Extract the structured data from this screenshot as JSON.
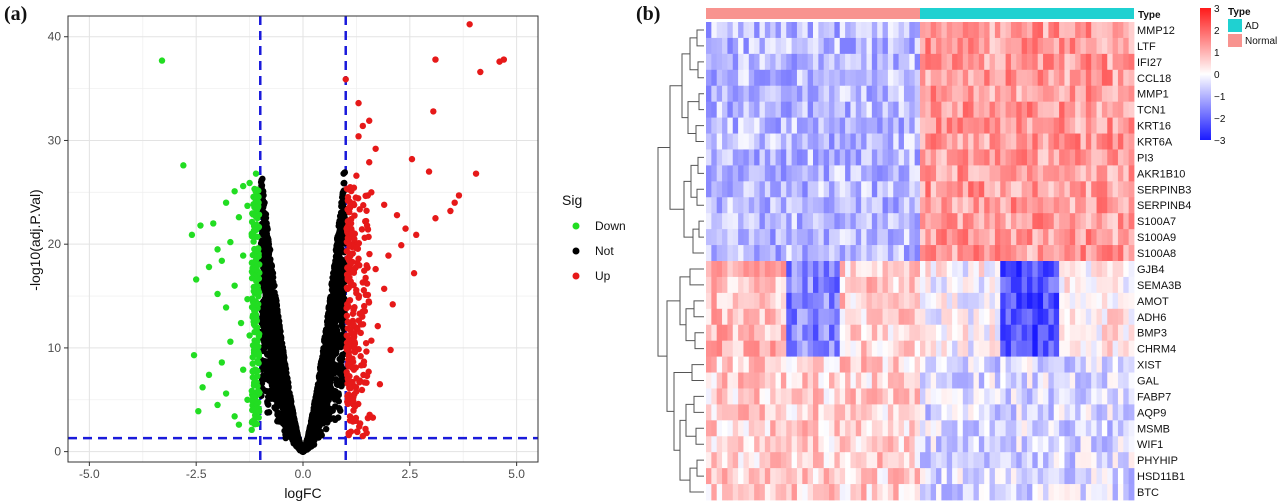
{
  "panels": {
    "a": "(a)",
    "b": "(b)"
  },
  "chart_data": [
    {
      "type": "scatter",
      "panel": "(a)",
      "title": "",
      "xlabel": "logFC",
      "ylabel": "-log10(adj.P.Val)",
      "xlim": [
        -5.5,
        5.5
      ],
      "ylim": [
        -1,
        42
      ],
      "xticks": [
        -5.0,
        -2.5,
        0.0,
        2.5,
        5.0
      ],
      "xtick_labels": [
        "-5.0",
        "-2.5",
        "0.0",
        "2.5",
        "5.0"
      ],
      "yticks": [
        0,
        10,
        20,
        30,
        40
      ],
      "ytick_labels": [
        "0",
        "10",
        "20",
        "30",
        "40"
      ],
      "grid": true,
      "thresholds": {
        "logFC": [
          -1,
          1
        ],
        "neg_log10_padj": 1.3,
        "color": "#1a1adb"
      },
      "legend": {
        "title": "Sig",
        "placement": "right",
        "entries": [
          "Down",
          "Not",
          "Up"
        ]
      },
      "series": [
        {
          "name": "Down",
          "color": "#22dd22",
          "points": [
            [
              -3.3,
              37.7
            ],
            [
              -2.8,
              27.6
            ],
            [
              -1.1,
              26.8
            ],
            [
              -1.25,
              25.9
            ],
            [
              -1.4,
              25.6
            ],
            [
              -1.6,
              25.1
            ],
            [
              -1.8,
              24.0
            ],
            [
              -2.1,
              22.0
            ],
            [
              -2.4,
              21.8
            ],
            [
              -2.6,
              20.9
            ],
            [
              -1.5,
              22.6
            ],
            [
              -1.3,
              23.7
            ],
            [
              -2.0,
              19.5
            ],
            [
              -1.7,
              20.2
            ],
            [
              -1.2,
              21.0
            ],
            [
              -2.2,
              17.8
            ],
            [
              -1.9,
              18.4
            ],
            [
              -1.4,
              18.9
            ],
            [
              -2.5,
              16.6
            ],
            [
              -1.6,
              16.0
            ],
            [
              -1.15,
              17.2
            ],
            [
              -2.0,
              15.2
            ],
            [
              -1.3,
              14.7
            ],
            [
              -1.8,
              13.9
            ],
            [
              -1.1,
              13.2
            ],
            [
              -1.45,
              12.4
            ],
            [
              -2.55,
              9.3
            ],
            [
              -1.7,
              10.6
            ],
            [
              -1.25,
              11.2
            ],
            [
              -1.9,
              8.6
            ],
            [
              -2.2,
              7.4
            ],
            [
              -1.4,
              7.9
            ],
            [
              -2.35,
              6.2
            ],
            [
              -1.8,
              5.6
            ],
            [
              -2.0,
              4.5
            ],
            [
              -2.45,
              3.9
            ],
            [
              -1.6,
              3.4
            ],
            [
              -1.3,
              5.0
            ],
            [
              -1.1,
              6.4
            ],
            [
              -1.5,
              2.6
            ],
            [
              -1.2,
              2.1
            ],
            [
              -1.05,
              9.6
            ],
            [
              -1.15,
              3.0
            ],
            [
              -1.05,
              15.6
            ],
            [
              -1.05,
              19.6
            ]
          ]
        },
        {
          "name": "Not",
          "color": "#000000",
          "points": [
            [
              -0.95,
              26.3
            ],
            [
              -0.9,
              24.0
            ],
            [
              -0.85,
              22.0
            ],
            [
              -0.8,
              20.0
            ],
            [
              -0.75,
              18.0
            ],
            [
              -0.7,
              16.0
            ],
            [
              -0.65,
              14.0
            ],
            [
              -0.6,
              12.0
            ],
            [
              -0.55,
              10.5
            ],
            [
              -0.5,
              9.0
            ],
            [
              -0.45,
              7.6
            ],
            [
              -0.4,
              6.3
            ],
            [
              -0.35,
              5.1
            ],
            [
              -0.3,
              4.0
            ],
            [
              -0.25,
              3.0
            ],
            [
              -0.2,
              2.2
            ],
            [
              -0.15,
              1.5
            ],
            [
              -0.1,
              0.9
            ],
            [
              -0.05,
              0.5
            ],
            [
              0.0,
              0.2
            ],
            [
              0.05,
              0.5
            ],
            [
              0.1,
              0.9
            ],
            [
              0.15,
              1.5
            ],
            [
              0.2,
              2.2
            ],
            [
              0.25,
              3.0
            ],
            [
              0.3,
              4.0
            ],
            [
              0.35,
              5.1
            ],
            [
              0.4,
              6.3
            ],
            [
              0.45,
              7.6
            ],
            [
              0.5,
              9.0
            ],
            [
              0.55,
              10.5
            ],
            [
              0.6,
              12.0
            ],
            [
              0.65,
              14.0
            ],
            [
              0.7,
              16.0
            ],
            [
              0.75,
              18.0
            ],
            [
              0.8,
              20.0
            ],
            [
              0.85,
              22.0
            ],
            [
              0.9,
              24.0
            ],
            [
              0.95,
              26.8
            ]
          ]
        },
        {
          "name": "Up",
          "color": "#e61919",
          "points": [
            [
              3.9,
              41.2
            ],
            [
              4.7,
              37.8
            ],
            [
              4.6,
              37.6
            ],
            [
              3.1,
              37.8
            ],
            [
              4.15,
              36.6
            ],
            [
              1.0,
              35.9
            ],
            [
              1.3,
              33.6
            ],
            [
              1.55,
              31.9
            ],
            [
              1.4,
              31.4
            ],
            [
              3.05,
              32.8
            ],
            [
              1.3,
              30.4
            ],
            [
              1.7,
              29.2
            ],
            [
              1.55,
              27.9
            ],
            [
              2.55,
              28.2
            ],
            [
              2.95,
              27.0
            ],
            [
              4.05,
              26.8
            ],
            [
              1.25,
              26.6
            ],
            [
              3.65,
              24.7
            ],
            [
              3.55,
              24.0
            ],
            [
              3.45,
              23.2
            ],
            [
              1.6,
              25.0
            ],
            [
              1.9,
              23.8
            ],
            [
              2.2,
              22.8
            ],
            [
              1.1,
              23.5
            ],
            [
              2.4,
              21.5
            ],
            [
              2.65,
              20.9
            ],
            [
              3.1,
              22.5
            ],
            [
              2.3,
              19.9
            ],
            [
              1.5,
              21.8
            ],
            [
              1.2,
              20.5
            ],
            [
              2.0,
              18.9
            ],
            [
              1.7,
              17.6
            ],
            [
              1.3,
              18.6
            ],
            [
              2.6,
              17.2
            ],
            [
              1.9,
              15.7
            ],
            [
              1.5,
              16.2
            ],
            [
              1.1,
              14.6
            ],
            [
              2.1,
              14.2
            ],
            [
              1.4,
              13.5
            ],
            [
              1.75,
              12.1
            ],
            [
              1.2,
              11.4
            ],
            [
              1.6,
              10.7
            ],
            [
              2.05,
              9.8
            ],
            [
              1.35,
              9.2
            ],
            [
              1.15,
              8.1
            ],
            [
              1.5,
              7.3
            ],
            [
              1.8,
              6.5
            ],
            [
              1.25,
              5.8
            ],
            [
              1.05,
              4.6
            ],
            [
              1.1,
              3.0
            ],
            [
              1.4,
              1.5
            ],
            [
              1.05,
              12.5
            ],
            [
              1.05,
              16.8
            ],
            [
              1.05,
              20.6
            ],
            [
              1.05,
              24.2
            ]
          ]
        }
      ]
    },
    {
      "type": "heatmap",
      "panel": "(b)",
      "rows": [
        "MMP12",
        "LTF",
        "IFI27",
        "CCL18",
        "MMP1",
        "TCN1",
        "KRT16",
        "KRT6A",
        "PI3",
        "AKR1B10",
        "SERPINB3",
        "SERPINB4",
        "S100A7",
        "S100A9",
        "S100A8",
        "GJB4",
        "SEMA3B",
        "AMOT",
        "ADH6",
        "BMP3",
        "CHRM4",
        "XIST",
        "GAL",
        "FABP7",
        "AQP9",
        "MSMB",
        "WIF1",
        "PHYHIP",
        "HSD11B1",
        "BTC"
      ],
      "annotation": {
        "label": "Type",
        "groups": [
          {
            "name": "Normal",
            "color": "#f8938f",
            "count": 40
          },
          {
            "name": "AD",
            "color": "#1fd1d1",
            "count": 40
          }
        ]
      },
      "legend": {
        "title": "Type",
        "entries": [
          "AD",
          "Normal"
        ]
      },
      "colorbar": {
        "min": -3,
        "max": 3,
        "ticks": [
          3,
          2,
          1,
          0,
          -1,
          -2,
          -3
        ],
        "tick_labels": [
          "3",
          "2",
          "1",
          "0",
          "−1",
          "−2",
          "−3"
        ],
        "colors": [
          "#1a1aff",
          "#ffffff",
          "#ff1a1a"
        ]
      },
      "row_profiles": {
        "up_in_AD": {
          "rows": [
            0,
            14
          ],
          "normal_mean": -0.9,
          "ad_mean": 1.3
        },
        "down_block": {
          "rows": [
            15,
            20
          ],
          "segments": [
            [
              0,
              15,
              0.9
            ],
            [
              15,
              25,
              -1.6
            ],
            [
              25,
              40,
              0.6
            ],
            [
              40,
              55,
              0.0
            ],
            [
              55,
              66,
              -2.2
            ],
            [
              66,
              80,
              0.2
            ]
          ]
        },
        "down_in_AD": {
          "rows": [
            21,
            29
          ],
          "normal_mean": 0.6,
          "ad_mean": -0.5
        }
      }
    }
  ]
}
